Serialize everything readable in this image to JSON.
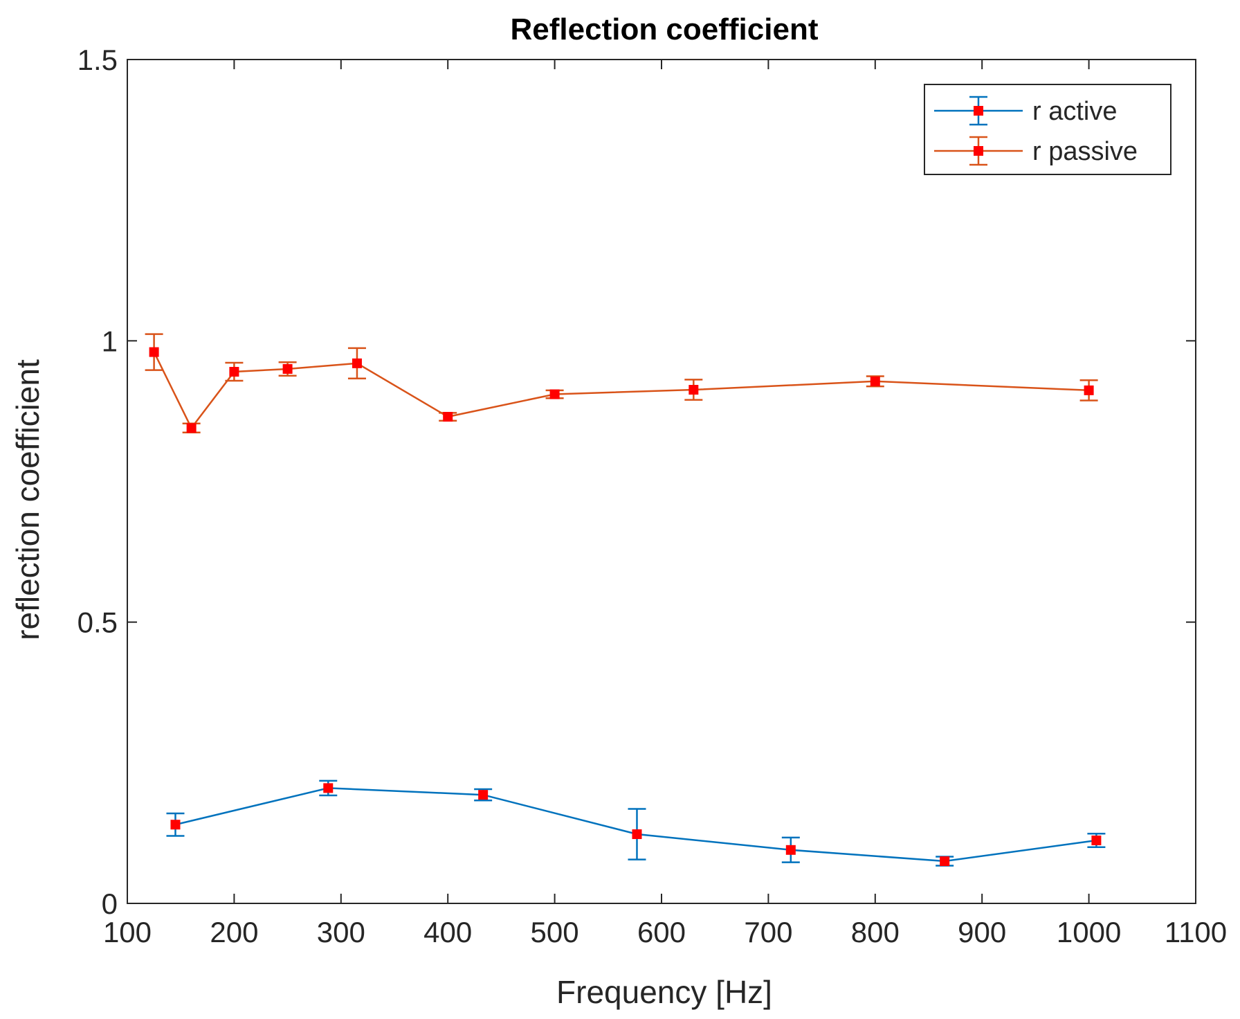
{
  "chart_data": {
    "type": "line",
    "title": "Reflection coefficient",
    "xlabel": "Frequency [Hz]",
    "ylabel": "reflection coefficient",
    "xlim": [
      100,
      1100
    ],
    "ylim": [
      0,
      1.5
    ],
    "xticks": [
      100,
      200,
      300,
      400,
      500,
      600,
      700,
      800,
      900,
      1000,
      1100
    ],
    "xtick_labels": [
      "100",
      "200",
      "300",
      "400",
      "500",
      "600",
      "700",
      "800",
      "900",
      "1000",
      "1100"
    ],
    "yticks": [
      0,
      0.5,
      1,
      1.5
    ],
    "ytick_labels": [
      "0",
      "0.5",
      "1",
      "1.5"
    ],
    "grid": false,
    "legend_position": "top-right",
    "marker_color": "#ff0000",
    "series": [
      {
        "name": "r active",
        "color": "#0072bd",
        "x": [
          145,
          288,
          433,
          577,
          721,
          865,
          1007
        ],
        "y": [
          0.14,
          0.205,
          0.193,
          0.123,
          0.095,
          0.075,
          0.112
        ],
        "err": [
          0.02,
          0.013,
          0.01,
          0.045,
          0.022,
          0.008,
          0.012
        ]
      },
      {
        "name": "r passive",
        "color": "#d95319",
        "x": [
          125,
          160,
          200,
          250,
          315,
          400,
          500,
          630,
          800,
          1000
        ],
        "y": [
          0.98,
          0.845,
          0.945,
          0.95,
          0.96,
          0.865,
          0.905,
          0.913,
          0.928,
          0.912
        ],
        "err": [
          0.032,
          0.008,
          0.016,
          0.012,
          0.027,
          0.007,
          0.007,
          0.018,
          0.009,
          0.018
        ]
      }
    ]
  }
}
